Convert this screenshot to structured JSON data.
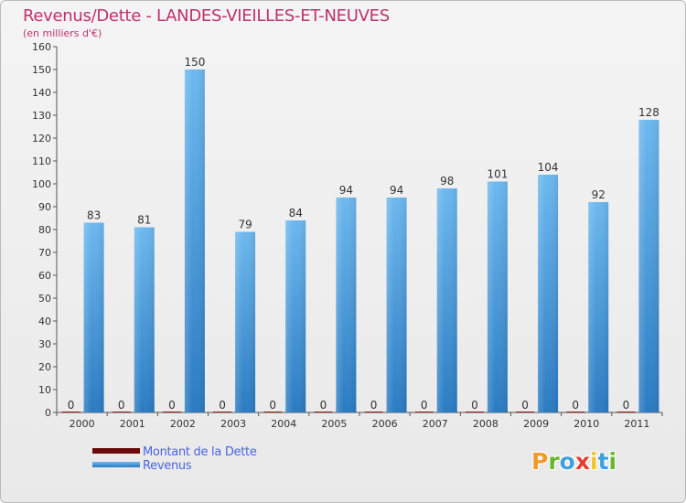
{
  "header": {
    "title": "Revenus/Dette - LANDES-VIEILLES-ET-NEUVES",
    "subtitle": "(en milliers d'€)"
  },
  "legend": {
    "items": [
      {
        "label": "Montant de la Dette",
        "color": "#6b0a0a"
      },
      {
        "label": "Revenus",
        "color": "#4da3e3"
      }
    ]
  },
  "branding": {
    "logo_text": "Proxiti",
    "logo_colors": [
      "#f19a2c",
      "#66b82c",
      "#3ea0dd",
      "#e83d2f",
      "#f2c12e",
      "#3ea0dd",
      "#66b82c"
    ]
  },
  "colors": {
    "title": "#c0306c",
    "revenus_light": "#6cb8ef",
    "revenus_dark": "#2a7bc2",
    "dette": "#8b1a1a"
  },
  "chart_data": {
    "type": "bar",
    "title": "Revenus/Dette - LANDES-VIEILLES-ET-NEUVES",
    "subtitle": "(en milliers d'€)",
    "xlabel": "",
    "ylabel": "",
    "ylim": [
      0,
      160
    ],
    "ytick_step": 10,
    "grid": false,
    "legend_position": "bottom-left",
    "categories": [
      "2000",
      "2001",
      "2002",
      "2003",
      "2004",
      "2005",
      "2006",
      "2007",
      "2008",
      "2009",
      "2010",
      "2011"
    ],
    "series": [
      {
        "name": "Montant de la Dette",
        "values": [
          0,
          0,
          0,
          0,
          0,
          0,
          0,
          0,
          0,
          0,
          0,
          0
        ]
      },
      {
        "name": "Revenus",
        "values": [
          83,
          81,
          150,
          79,
          84,
          94,
          94,
          98,
          101,
          104,
          92,
          128
        ]
      }
    ]
  }
}
